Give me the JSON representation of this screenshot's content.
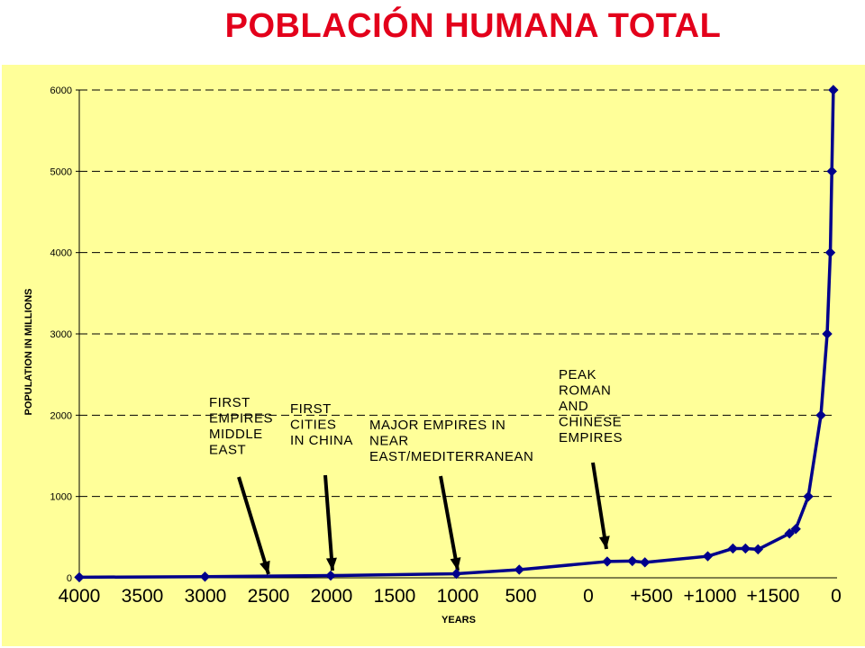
{
  "page": {
    "title": "POBLACIÓN HUMANA TOTAL"
  },
  "colors": {
    "title": "#e3001b",
    "plot_background": "#ffff99",
    "series": "#00008b",
    "arrow": "#000000"
  },
  "chart_data": {
    "type": "line",
    "title": "",
    "xlabel": "YEARS",
    "ylabel": "POPULATION IN MILLIONS",
    "ylim": [
      0,
      6000
    ],
    "xlim": [
      -4000,
      2000
    ],
    "grid": "horizontal dashed",
    "y_ticks": [
      "0",
      "1000",
      "2000",
      "3000",
      "4000",
      "5000",
      "6000"
    ],
    "x_ticks": [
      "4000",
      "3500",
      "3000",
      "2500",
      "2000",
      "1500",
      "1000",
      "500",
      "0",
      "+500",
      "+1000",
      "+1500",
      "0"
    ],
    "series": [
      {
        "marker": "diamond",
        "x": [
          -4000,
          -3000,
          -2000,
          -1000,
          -500,
          200,
          400,
          500,
          1000,
          1200,
          1300,
          1400,
          1650,
          1700,
          1800,
          1900,
          1950,
          1975,
          1987,
          1999
        ],
        "y": [
          7,
          14,
          27,
          50,
          100,
          200,
          206,
          190,
          265,
          360,
          360,
          350,
          545,
          600,
          1000,
          2000,
          3000,
          4000,
          5000,
          6000
        ]
      }
    ],
    "annotations": [
      {
        "lines": [
          "FIRST",
          "EMPIRES",
          "MIDDLE",
          "EAST"
        ],
        "points_to_x": -2500
      },
      {
        "lines": [
          "FIRST",
          "CITIES",
          "IN CHINA"
        ],
        "points_to_x": -2000
      },
      {
        "lines": [
          "MAJOR EMPIRES IN",
          "NEAR",
          "EAST/MEDITERRANEAN"
        ],
        "points_to_x": -1000
      },
      {
        "lines": [
          "PEAK",
          "ROMAN",
          "AND",
          "CHINESE",
          "EMPIRES"
        ],
        "points_to_x": 150
      }
    ]
  }
}
